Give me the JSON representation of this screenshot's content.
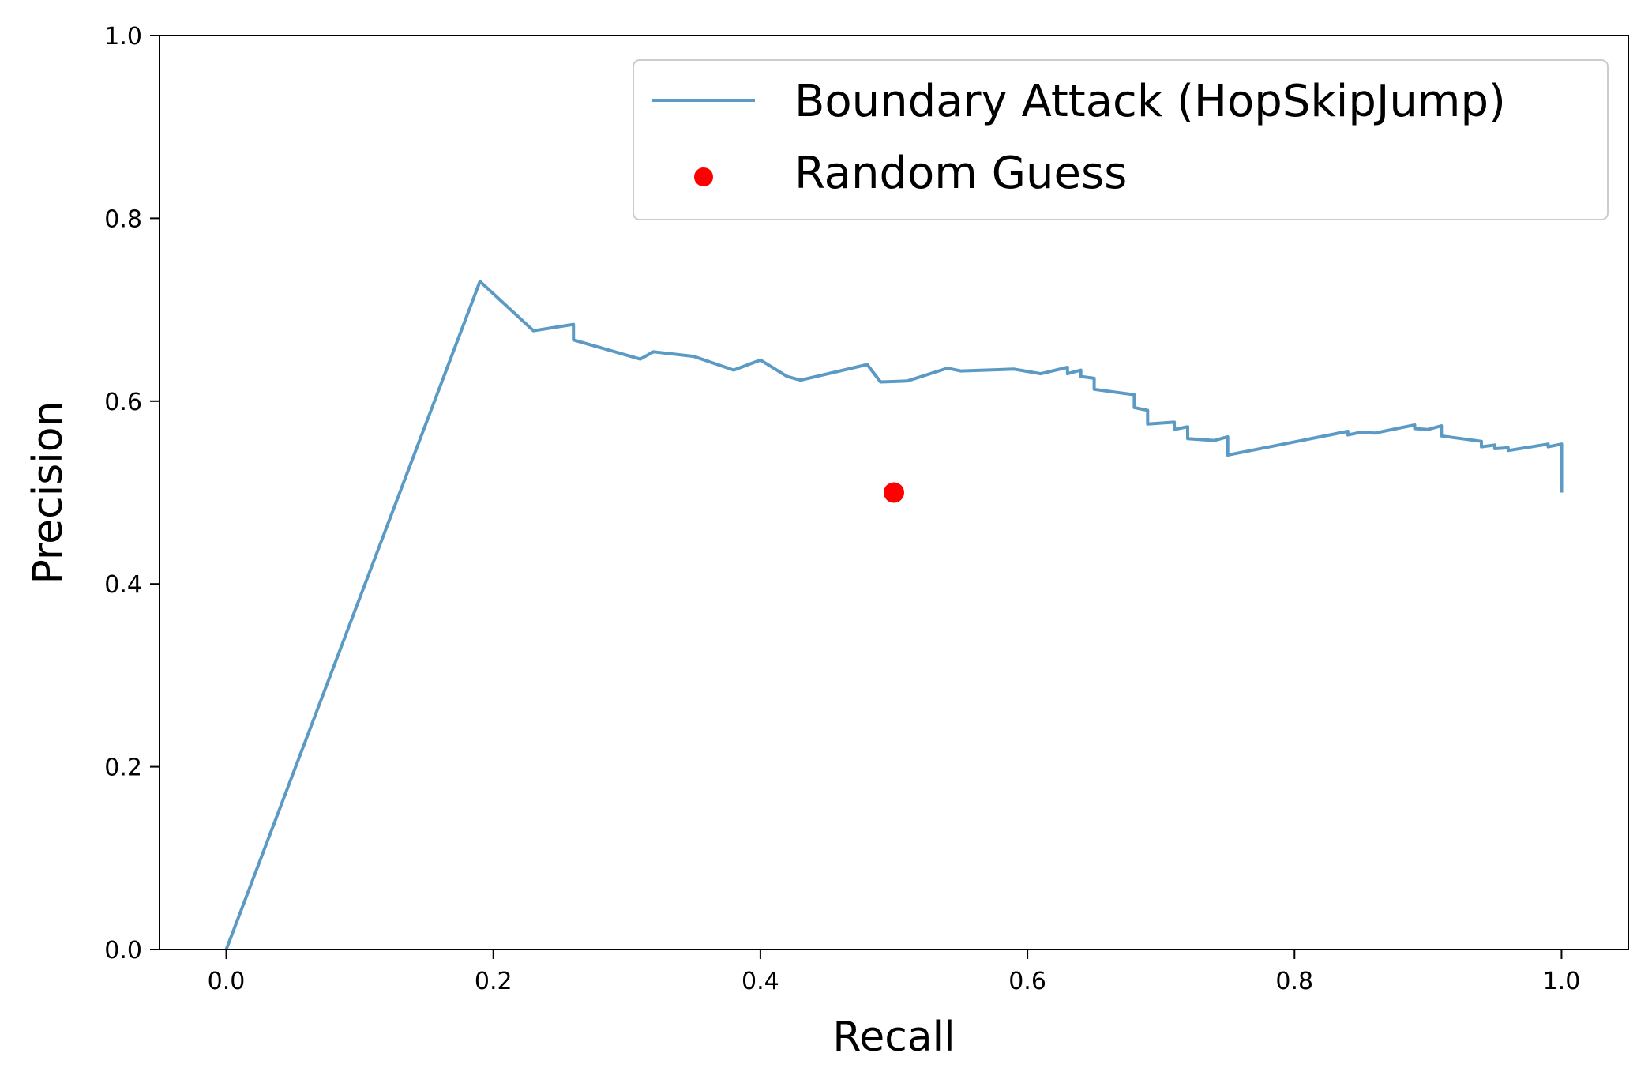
{
  "chart_data": {
    "type": "line",
    "xlabel": "Recall",
    "ylabel": "Precision",
    "xlim": [
      -0.05,
      1.05
    ],
    "ylim": [
      0.0,
      1.0
    ],
    "xticks": [
      "0.0",
      "0.2",
      "0.4",
      "0.6",
      "0.8",
      "1.0"
    ],
    "yticks": [
      "0.0",
      "0.2",
      "0.4",
      "0.6",
      "0.8",
      "1.0"
    ],
    "grid": false,
    "legend_position": "upper right",
    "series": [
      {
        "name": "Boundary Attack (HopSkipJump)",
        "type": "line",
        "color": "#5b9ac4",
        "x": [
          0.0,
          0.19,
          0.23,
          0.26,
          0.26,
          0.31,
          0.32,
          0.35,
          0.38,
          0.4,
          0.42,
          0.43,
          0.48,
          0.49,
          0.51,
          0.54,
          0.55,
          0.59,
          0.61,
          0.63,
          0.63,
          0.64,
          0.64,
          0.65,
          0.65,
          0.68,
          0.68,
          0.69,
          0.69,
          0.71,
          0.71,
          0.72,
          0.72,
          0.74,
          0.75,
          0.75,
          0.84,
          0.84,
          0.85,
          0.86,
          0.89,
          0.89,
          0.9,
          0.91,
          0.91,
          0.94,
          0.94,
          0.95,
          0.95,
          0.96,
          0.96,
          0.99,
          0.99,
          1.0,
          1.0
        ],
        "y": [
          0.0,
          0.731,
          0.677,
          0.684,
          0.667,
          0.646,
          0.654,
          0.649,
          0.634,
          0.645,
          0.627,
          0.623,
          0.64,
          0.621,
          0.622,
          0.636,
          0.633,
          0.635,
          0.63,
          0.637,
          0.63,
          0.634,
          0.627,
          0.625,
          0.613,
          0.607,
          0.593,
          0.59,
          0.575,
          0.577,
          0.569,
          0.572,
          0.559,
          0.557,
          0.561,
          0.541,
          0.567,
          0.563,
          0.566,
          0.565,
          0.574,
          0.57,
          0.569,
          0.573,
          0.562,
          0.556,
          0.55,
          0.552,
          0.548,
          0.549,
          0.546,
          0.553,
          0.55,
          0.553,
          0.5
        ]
      },
      {
        "name": "Random Guess",
        "type": "scatter",
        "color": "#ff0000",
        "x": [
          0.5
        ],
        "y": [
          0.5
        ]
      }
    ]
  }
}
